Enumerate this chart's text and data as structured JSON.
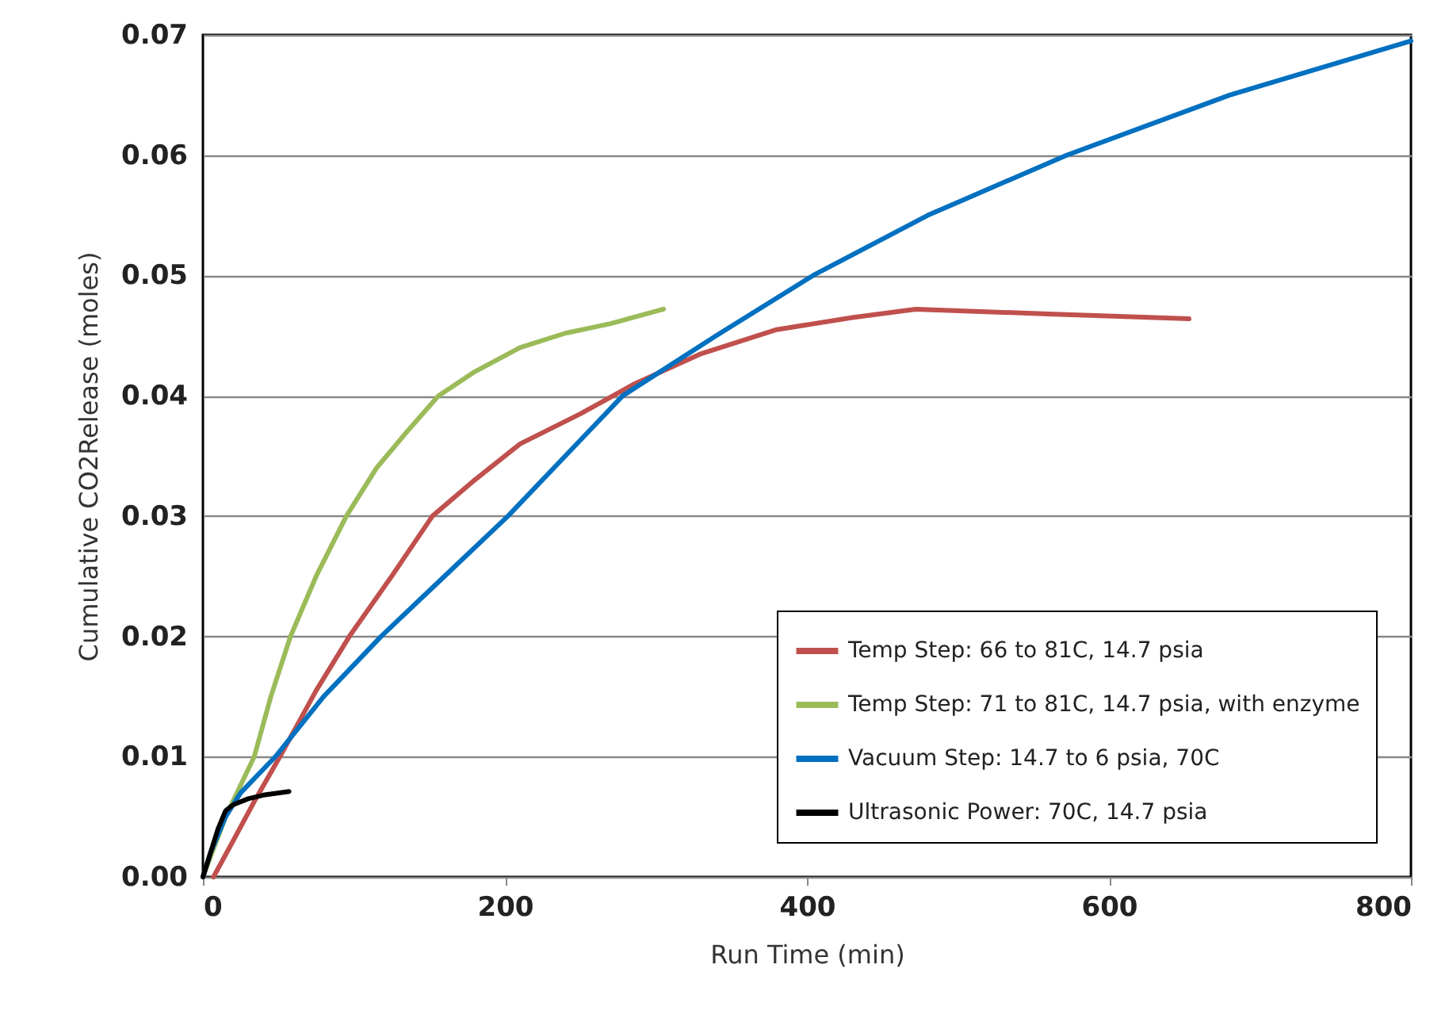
{
  "chart_data": {
    "type": "line",
    "xlabel": "Run Time (min)",
    "ylabel": "Cumulative CO2Release (moles)",
    "xlim": [
      0,
      800
    ],
    "xticks": [
      0,
      200,
      400,
      600,
      800
    ],
    "ylim": [
      0,
      0.07
    ],
    "yticks": [
      {
        "value": 0,
        "label": "0.00"
      },
      {
        "value": 0.01,
        "label": "0.01"
      },
      {
        "value": 0.02,
        "label": "0.02"
      },
      {
        "value": 0.03,
        "label": "0.03"
      },
      {
        "value": 0.04,
        "label": "0.04"
      },
      {
        "value": 0.05,
        "label": "0.05"
      },
      {
        "value": 0.06,
        "label": "0.06"
      },
      {
        "value": 0.07,
        "label": "0.07"
      }
    ],
    "grid": "y",
    "legend": "bottom right",
    "marker": "none",
    "line_style": "solid",
    "series": [
      {
        "name": "Temp Step: 66 to 81C, 14.7 psia",
        "color": "#c0504d",
        "x": [
          7,
          20,
          35,
          51,
          75,
          97,
          125,
          152,
          180,
          210,
          250,
          286,
          330,
          380,
          430,
          472,
          560,
          653
        ],
        "values": [
          0,
          0.003,
          0.0065,
          0.01,
          0.0155,
          0.02,
          0.025,
          0.03,
          0.033,
          0.036,
          0.0385,
          0.041,
          0.0435,
          0.0455,
          0.0465,
          0.0472,
          0.0468,
          0.0464
        ]
      },
      {
        "name": "Temp Step: 71 to 81C, 14.7 psia, with enzyme",
        "color": "#9bbb59",
        "x": [
          0,
          15,
          34,
          45,
          58,
          75,
          95,
          115,
          135,
          156,
          180,
          210,
          240,
          270,
          305
        ],
        "values": [
          0,
          0.005,
          0.01,
          0.015,
          0.02,
          0.025,
          0.03,
          0.034,
          0.037,
          0.04,
          0.042,
          0.044,
          0.0452,
          0.046,
          0.0472
        ]
      },
      {
        "name": "Vacuum Step: 14.7 to 6 psia, 70C",
        "color": "#0070c0",
        "x": [
          0,
          5,
          15,
          25,
          48,
          80,
          118,
          160,
          202,
          240,
          278,
          340,
          404,
          480,
          572,
          680,
          800
        ],
        "values": [
          0,
          0.002,
          0.005,
          0.007,
          0.01,
          0.015,
          0.02,
          0.025,
          0.03,
          0.035,
          0.04,
          0.045,
          0.05,
          0.055,
          0.06,
          0.065,
          0.0695
        ]
      },
      {
        "name": "Ultrasonic Power: 70C, 14.7 psia",
        "color": "#000000",
        "x": [
          0,
          5,
          10,
          15,
          20,
          30,
          40,
          57
        ],
        "values": [
          0,
          0.002,
          0.004,
          0.0055,
          0.006,
          0.0065,
          0.0068,
          0.0071
        ]
      }
    ]
  }
}
